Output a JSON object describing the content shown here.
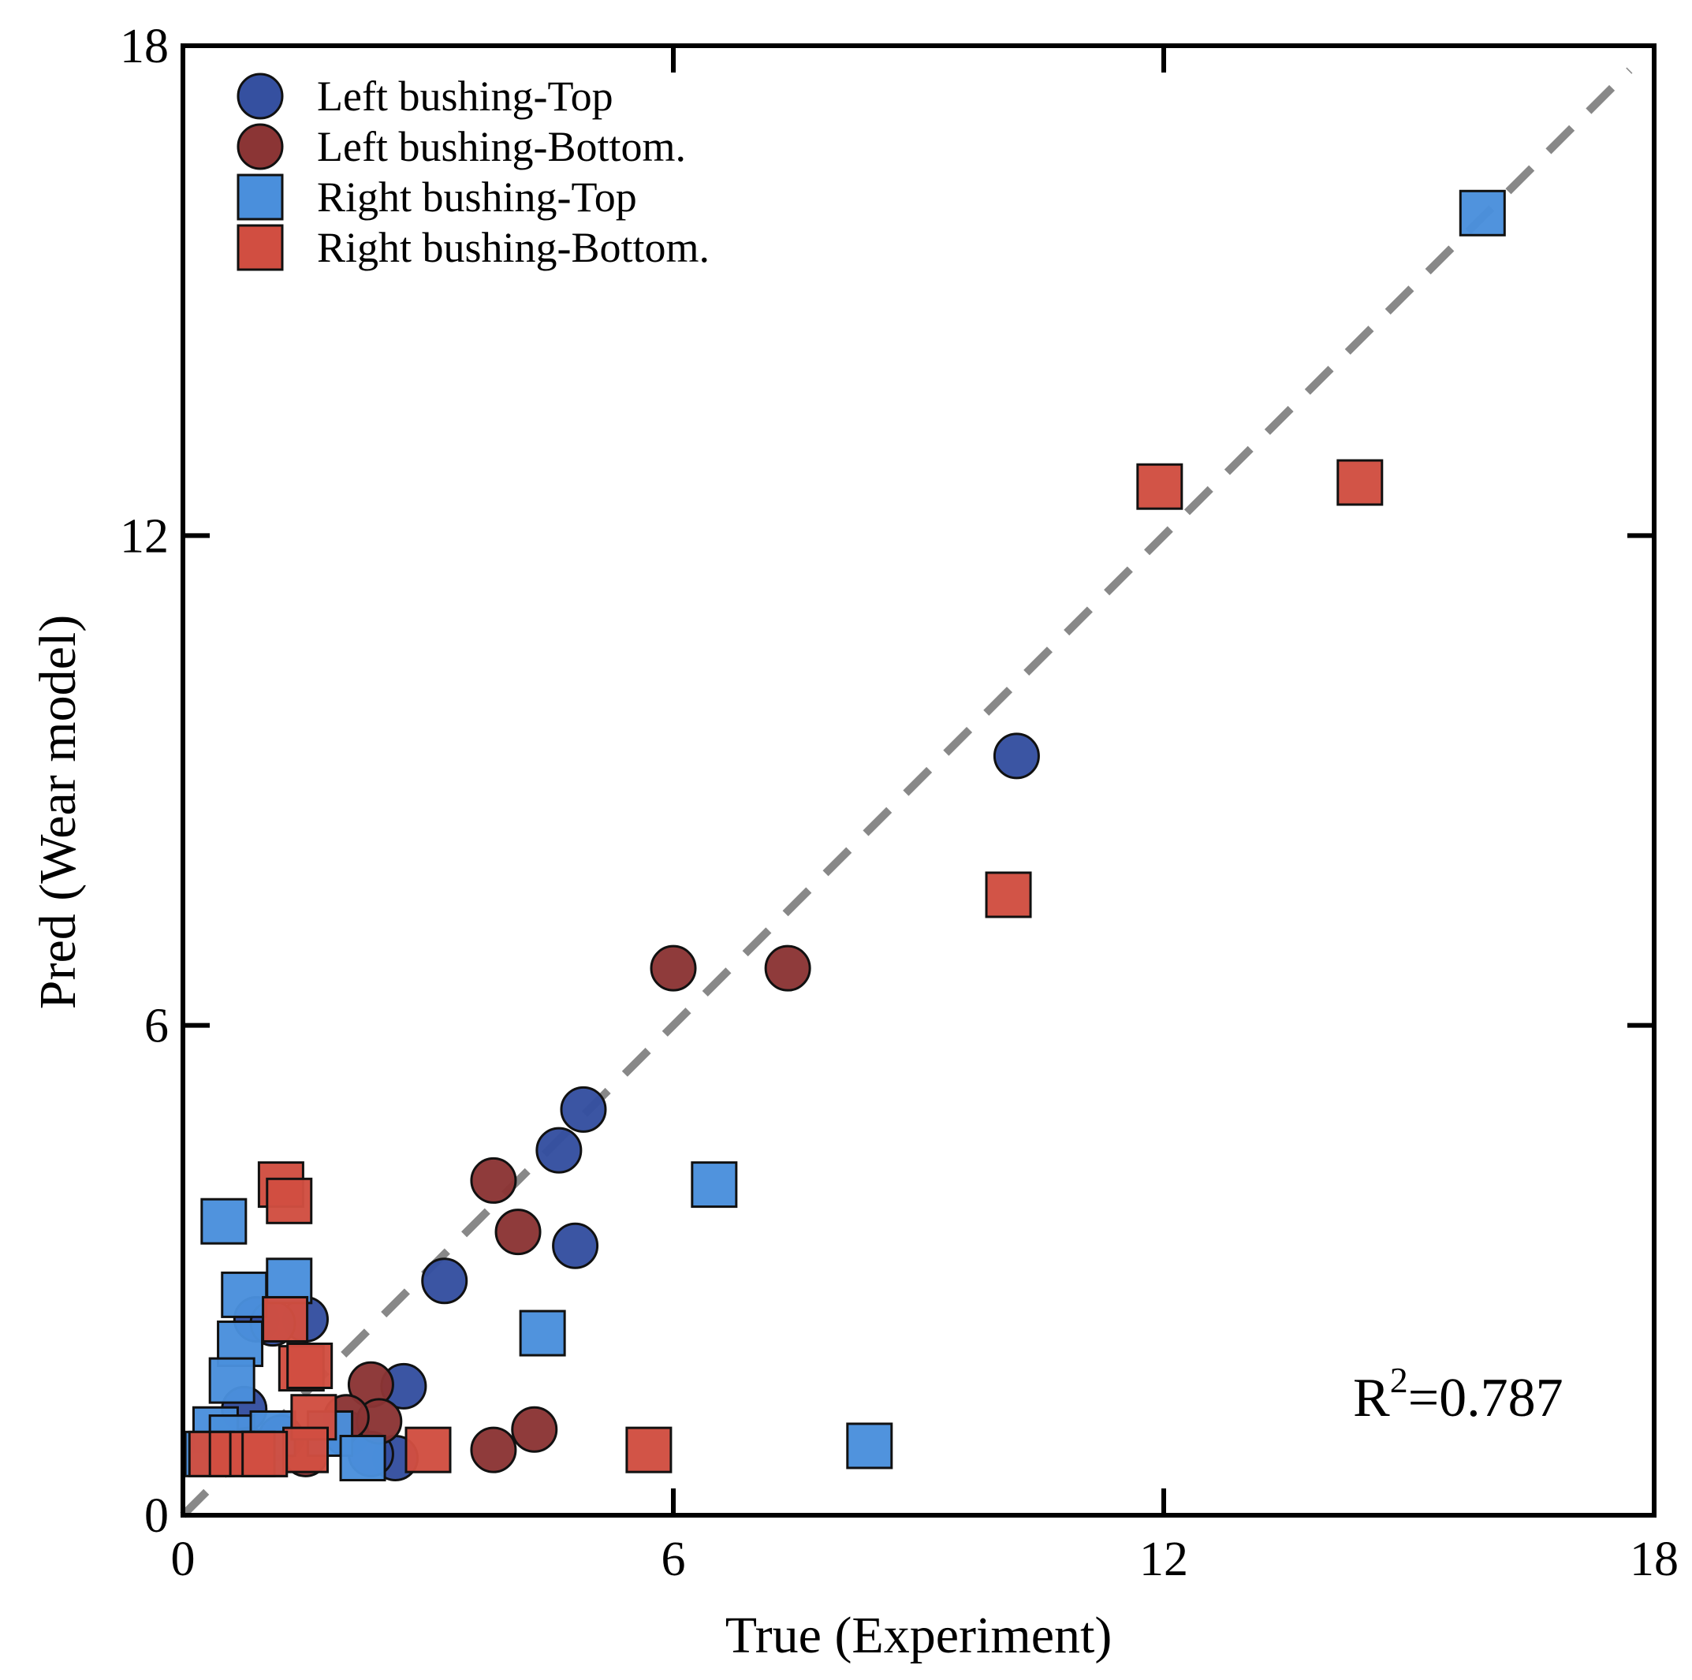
{
  "chart_data": {
    "type": "scatter",
    "title": "",
    "xlabel": "True (Experiment)",
    "ylabel": "Pred (Wear model)",
    "xlim": [
      0,
      18
    ],
    "ylim": [
      0,
      18
    ],
    "xticks": [
      0,
      6,
      12,
      18
    ],
    "yticks": [
      0,
      6,
      12,
      18
    ],
    "x_tick_labels": [
      "0",
      "6",
      "12",
      "18"
    ],
    "y_tick_labels": [
      "0",
      "6",
      "12",
      "18"
    ],
    "grid": false,
    "legend_position": "top-left",
    "reference_line": {
      "style": "dashed",
      "color": "#888888",
      "from": [
        0,
        0
      ],
      "to": [
        17.7,
        17.7
      ]
    },
    "annotation": {
      "base": "R",
      "superscript": "2",
      "rest": "=0.787"
    },
    "series": [
      {
        "name": "Left bushing-Top",
        "marker": "circle",
        "color": "#3550a0",
        "points": [
          [
            10.2,
            9.3
          ],
          [
            4.9,
            4.97
          ],
          [
            4.6,
            4.47
          ],
          [
            4.8,
            3.3
          ],
          [
            3.2,
            2.87
          ],
          [
            2.7,
            1.58
          ],
          [
            1.5,
            2.4
          ],
          [
            0.9,
            2.4
          ],
          [
            1.1,
            2.35
          ],
          [
            0.75,
            1.3
          ],
          [
            1.2,
            0.95
          ],
          [
            2.0,
            1.0
          ],
          [
            2.6,
            0.7
          ],
          [
            2.3,
            0.75
          ],
          [
            0.55,
            0.75
          ]
        ]
      },
      {
        "name": "Left bushing-Bottom.",
        "marker": "circle",
        "color": "#8b3535",
        "points": [
          [
            6.0,
            6.7
          ],
          [
            7.4,
            6.7
          ],
          [
            3.8,
            4.1
          ],
          [
            4.1,
            3.47
          ],
          [
            4.3,
            1.05
          ],
          [
            3.8,
            0.8
          ],
          [
            2.3,
            1.6
          ],
          [
            2.4,
            1.15
          ],
          [
            2.0,
            1.2
          ],
          [
            1.5,
            0.75
          ],
          [
            0.8,
            0.8
          ]
        ]
      },
      {
        "name": "Right bushing-Top",
        "marker": "square",
        "color": "#4a8fdc",
        "points": [
          [
            15.9,
            15.95
          ],
          [
            6.5,
            4.05
          ],
          [
            8.4,
            0.85
          ],
          [
            4.4,
            2.23
          ],
          [
            0.5,
            3.6
          ],
          [
            0.75,
            2.7
          ],
          [
            1.3,
            2.87
          ],
          [
            0.7,
            2.1
          ],
          [
            0.6,
            1.65
          ],
          [
            0.4,
            1.05
          ],
          [
            0.6,
            0.95
          ],
          [
            1.1,
            1.0
          ],
          [
            1.8,
            1.0
          ],
          [
            2.2,
            0.7
          ],
          [
            0.3,
            0.75
          ],
          [
            1.0,
            0.75
          ]
        ]
      },
      {
        "name": "Right bushing-Bottom.",
        "marker": "square",
        "color": "#d14e41",
        "points": [
          [
            11.95,
            12.6
          ],
          [
            14.4,
            12.65
          ],
          [
            10.1,
            7.6
          ],
          [
            1.2,
            4.05
          ],
          [
            1.3,
            3.85
          ],
          [
            1.25,
            2.4
          ],
          [
            1.45,
            1.8
          ],
          [
            1.55,
            1.83
          ],
          [
            1.6,
            1.2
          ],
          [
            1.5,
            0.8
          ],
          [
            3.0,
            0.8
          ],
          [
            5.7,
            0.8
          ],
          [
            0.35,
            0.75
          ],
          [
            0.6,
            0.75
          ],
          [
            0.85,
            0.75
          ],
          [
            1.0,
            0.75
          ]
        ]
      }
    ]
  }
}
